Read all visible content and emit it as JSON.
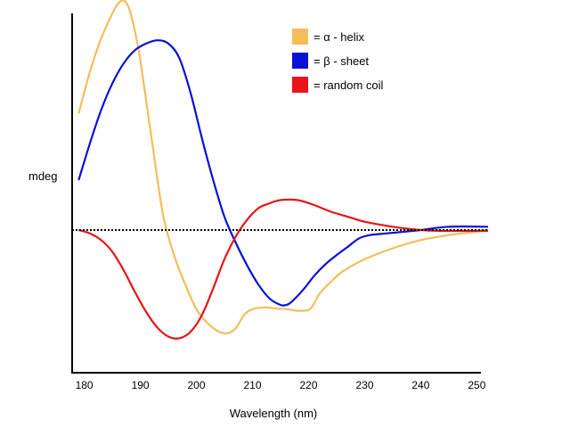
{
  "chart_data": {
    "type": "line",
    "title": "",
    "xlabel": "Wavelength (nm)",
    "ylabel": "mdeg",
    "xlim": [
      178,
      252
    ],
    "ylim": [
      -1.5,
      1.35
    ],
    "x_ticks": [
      "180",
      "190",
      "200",
      "210",
      "220",
      "230",
      "240",
      "250"
    ],
    "zero_line": {
      "style": "dotted",
      "color": "#000000"
    },
    "grid": false,
    "legend_position": "top-right",
    "series": [
      {
        "name": "= α - helix",
        "color": "#f5bd5a",
        "points": [
          [
            179,
            0.7
          ],
          [
            181,
            0.95
          ],
          [
            183,
            1.15
          ],
          [
            185,
            1.3
          ],
          [
            186,
            1.36
          ],
          [
            187,
            1.38
          ],
          [
            188,
            1.33
          ],
          [
            189,
            1.2
          ],
          [
            190,
            1.02
          ],
          [
            192,
            0.55
          ],
          [
            194,
            0.1
          ],
          [
            196,
            -0.3
          ],
          [
            198,
            -0.65
          ],
          [
            200,
            -0.95
          ],
          [
            202,
            -1.12
          ],
          [
            204,
            -1.22
          ],
          [
            205.5,
            -1.24
          ],
          [
            207,
            -1.18
          ],
          [
            208.5,
            -1.02
          ],
          [
            210,
            -0.95
          ],
          [
            212,
            -0.93
          ],
          [
            214,
            -0.94
          ],
          [
            216,
            -0.95
          ],
          [
            218,
            -0.97
          ],
          [
            220,
            -0.96
          ],
          [
            221,
            -0.88
          ],
          [
            222,
            -0.76
          ],
          [
            224,
            -0.62
          ],
          [
            226,
            -0.5
          ],
          [
            230,
            -0.35
          ],
          [
            235,
            -0.22
          ],
          [
            240,
            -0.12
          ],
          [
            245,
            -0.06
          ],
          [
            250,
            -0.02
          ],
          [
            252,
            0.0
          ]
        ]
      },
      {
        "name": "= β - sheet",
        "color": "#0a10d6",
        "points": [
          [
            179,
            0.3
          ],
          [
            181,
            0.52
          ],
          [
            183,
            0.72
          ],
          [
            185,
            0.88
          ],
          [
            187,
            1.0
          ],
          [
            189,
            1.08
          ],
          [
            191,
            1.12
          ],
          [
            193,
            1.14
          ],
          [
            195,
            1.12
          ],
          [
            197,
            1.03
          ],
          [
            199,
            0.82
          ],
          [
            201,
            0.55
          ],
          [
            203,
            0.3
          ],
          [
            205,
            0.08
          ],
          [
            207,
            -0.15
          ],
          [
            209,
            -0.42
          ],
          [
            211,
            -0.65
          ],
          [
            213,
            -0.82
          ],
          [
            215,
            -0.9
          ],
          [
            216,
            -0.9
          ],
          [
            217,
            -0.86
          ],
          [
            219,
            -0.72
          ],
          [
            221,
            -0.55
          ],
          [
            223,
            -0.41
          ],
          [
            225,
            -0.3
          ],
          [
            227,
            -0.2
          ],
          [
            229,
            -0.1
          ],
          [
            231,
            -0.06
          ],
          [
            234,
            -0.04
          ],
          [
            237,
            -0.02
          ],
          [
            240,
            0.0
          ],
          [
            245,
            0.02
          ],
          [
            252,
            0.02
          ]
        ]
      },
      {
        "name": "= random coil",
        "color": "#e8141a",
        "points": [
          [
            179,
            0.0
          ],
          [
            181,
            -0.04
          ],
          [
            183,
            -0.12
          ],
          [
            185,
            -0.26
          ],
          [
            187,
            -0.48
          ],
          [
            189,
            -0.74
          ],
          [
            191,
            -0.98
          ],
          [
            193,
            -1.17
          ],
          [
            195,
            -1.28
          ],
          [
            197,
            -1.3
          ],
          [
            199,
            -1.22
          ],
          [
            201,
            -1.02
          ],
          [
            203,
            -0.7
          ],
          [
            205,
            -0.35
          ],
          [
            207,
            -0.08
          ],
          [
            209,
            0.06
          ],
          [
            211,
            0.13
          ],
          [
            213,
            0.16
          ],
          [
            215,
            0.18
          ],
          [
            218,
            0.18
          ],
          [
            221,
            0.15
          ],
          [
            224,
            0.11
          ],
          [
            227,
            0.08
          ],
          [
            230,
            0.05
          ],
          [
            235,
            0.02
          ],
          [
            240,
            0.0
          ],
          [
            245,
            -0.01
          ],
          [
            252,
            -0.01
          ]
        ]
      }
    ]
  }
}
